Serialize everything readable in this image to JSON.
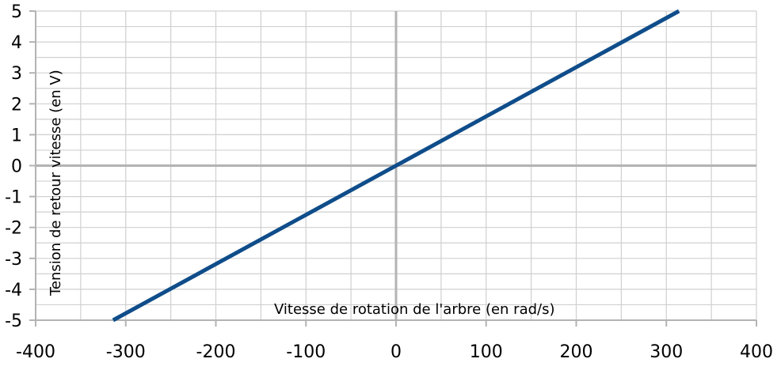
{
  "chart_data": {
    "type": "line",
    "title": "",
    "xlabel": "Vitesse de rotation de l'arbre (en rad/s)",
    "ylabel": "Tension de retour vitesse (en V)",
    "xlim": [
      -400,
      400
    ],
    "ylim": [
      -5,
      5
    ],
    "x_ticks": [
      -400,
      -300,
      -200,
      -100,
      0,
      100,
      200,
      300,
      400
    ],
    "y_ticks": [
      5,
      4,
      3,
      2,
      1,
      0,
      -1,
      -2,
      -3,
      -4,
      -5
    ],
    "x_tick_labels": [
      "-400",
      "-300",
      "-200",
      "-100",
      "0",
      "100",
      "200",
      "300",
      "400"
    ],
    "y_tick_labels": [
      "5",
      "4",
      "3",
      "2",
      "1",
      "0",
      "-1",
      "-2",
      "-3",
      "-4",
      "-5"
    ],
    "grid": true,
    "legend": "none",
    "series": [
      {
        "color": "#0f4d8a",
        "x": [
          -314,
          314
        ],
        "y": [
          -5,
          5
        ]
      }
    ]
  }
}
